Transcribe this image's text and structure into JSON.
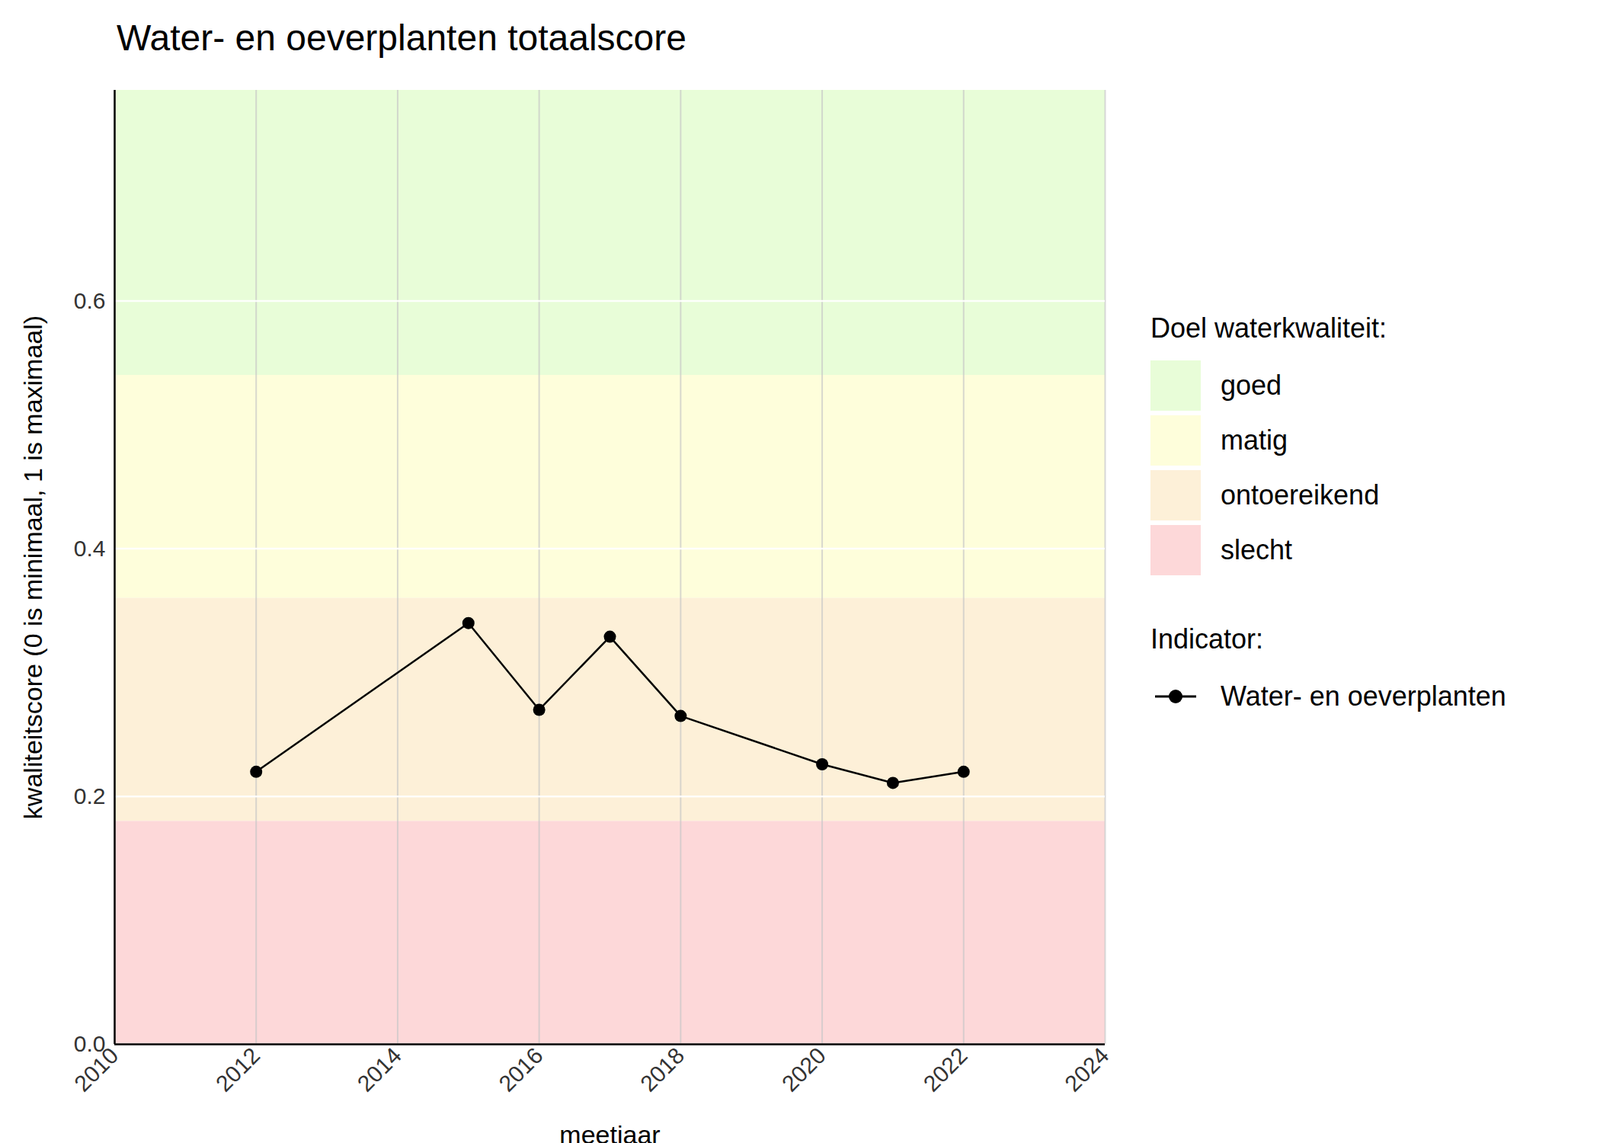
{
  "chart_data": {
    "type": "line",
    "title": "Water- en oeverplanten totaalscore",
    "x_label": "meetjaar",
    "y_label": "kwaliteitscore (0 is minimaal, 1 is maximaal)",
    "x": [
      2012,
      2015,
      2016,
      2017,
      2018,
      2020,
      2021,
      2022
    ],
    "series": [
      {
        "name": "Water- en oeverplanten",
        "color": "#000000",
        "marker": "circle",
        "values": [
          0.22,
          0.34,
          0.27,
          0.329,
          0.265,
          0.226,
          0.211,
          0.22
        ]
      }
    ],
    "xlim": [
      2010,
      2024
    ],
    "xticks": [
      2010,
      2012,
      2014,
      2016,
      2018,
      2020,
      2022,
      2024
    ],
    "ylim": [
      0,
      0.77
    ],
    "yticks": [
      {
        "value": 0,
        "label": "0.0"
      },
      {
        "value": 0.2,
        "label": "0.2"
      },
      {
        "value": 0.4,
        "label": "0.4"
      },
      {
        "value": 0.6,
        "label": "0.6"
      }
    ],
    "grid": true,
    "legend_title": "Indicator:",
    "bands_title": "Doel waterkwaliteit:",
    "bands": [
      {
        "name": "goed",
        "color": "#e8fdd8",
        "from": 0.54,
        "to": 0.77
      },
      {
        "name": "matig",
        "color": "#fefedb",
        "from": 0.36,
        "to": 0.54
      },
      {
        "name": "ontoereikend",
        "color": "#fdf0d8",
        "from": 0.18,
        "to": 0.36
      },
      {
        "name": "slecht",
        "color": "#fdd8d9",
        "from": 0,
        "to": 0.18
      }
    ]
  }
}
